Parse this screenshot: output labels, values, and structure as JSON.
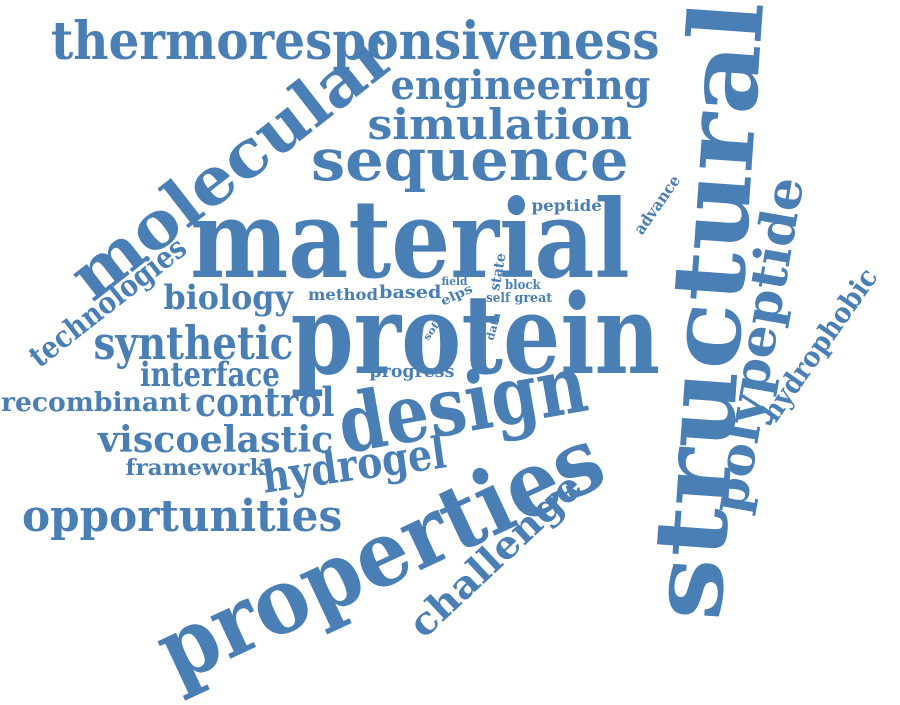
{
  "colors": {
    "word": "#4a7fb5",
    "background": "#ffffff"
  },
  "words": [
    {
      "id": "thermoresponsiveness",
      "text": "thermoresponsiveness"
    },
    {
      "id": "molecular",
      "text": "molecular"
    },
    {
      "id": "engineering",
      "text": "engineering"
    },
    {
      "id": "simulation",
      "text": "simulation"
    },
    {
      "id": "sequence",
      "text": "sequence"
    },
    {
      "id": "structural",
      "text": "structural"
    },
    {
      "id": "material",
      "text": "material"
    },
    {
      "id": "technologies",
      "text": "technologies"
    },
    {
      "id": "peptide",
      "text": "peptide"
    },
    {
      "id": "advance",
      "text": "advance"
    },
    {
      "id": "polypeptide",
      "text": "polypeptide"
    },
    {
      "id": "biology",
      "text": "biology"
    },
    {
      "id": "method",
      "text": "method"
    },
    {
      "id": "based",
      "text": "based"
    },
    {
      "id": "field",
      "text": "field"
    },
    {
      "id": "elps",
      "text": "elps"
    },
    {
      "id": "state",
      "text": "state"
    },
    {
      "id": "block",
      "text": "block"
    },
    {
      "id": "self",
      "text": "self"
    },
    {
      "id": "great",
      "text": "great"
    },
    {
      "id": "soft",
      "text": "soft"
    },
    {
      "id": "data",
      "text": "data"
    },
    {
      "id": "hydrophobic",
      "text": "hydrophobic"
    },
    {
      "id": "synthetic",
      "text": "synthetic"
    },
    {
      "id": "protein",
      "text": "protein"
    },
    {
      "id": "interface",
      "text": "interface"
    },
    {
      "id": "progress",
      "text": "progress"
    },
    {
      "id": "recombinant",
      "text": "recombinant"
    },
    {
      "id": "control",
      "text": "control"
    },
    {
      "id": "design",
      "text": "design"
    },
    {
      "id": "viscoelastic",
      "text": "viscoelastic"
    },
    {
      "id": "framework",
      "text": "framework"
    },
    {
      "id": "hydrogel",
      "text": "hydrogel"
    },
    {
      "id": "properties",
      "text": "properties"
    },
    {
      "id": "opportunities",
      "text": "opportunities"
    },
    {
      "id": "challenge",
      "text": "challenge"
    }
  ]
}
